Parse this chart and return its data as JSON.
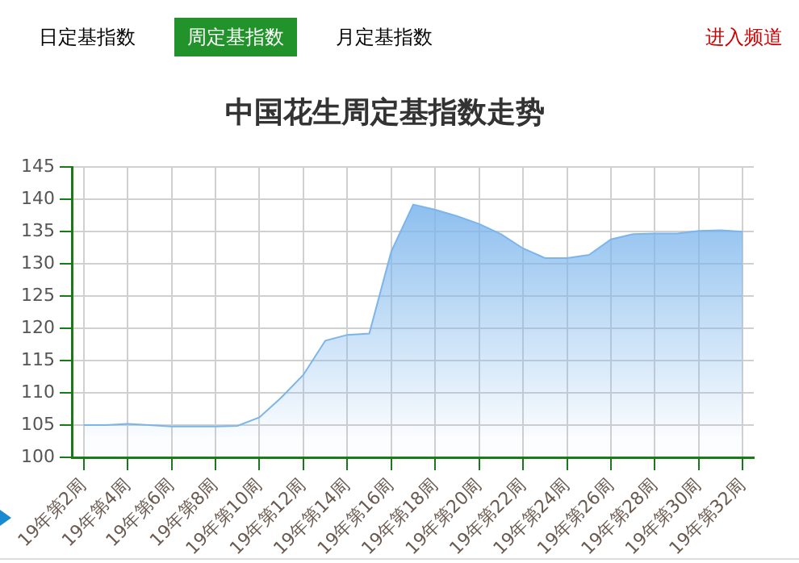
{
  "chart_data": {
    "type": "area",
    "title": "中国花生周定基指数走势",
    "annotations": [
      "日定基指数",
      "周定基指数",
      "月定基指数",
      "进入频道"
    ],
    "categories": [
      "19年第2周",
      null,
      "19年第4周",
      null,
      "19年第6周",
      null,
      "19年第8周",
      null,
      "19年第10周",
      null,
      "19年第12周",
      null,
      "19年第14周",
      null,
      "19年第16周",
      null,
      "19年第18周",
      null,
      "19年第20周",
      null,
      "19年第22周",
      null,
      "19年第24周",
      null,
      "19年第26周",
      null,
      "19年第28周",
      null,
      "19年第30周",
      null,
      "19年第32周"
    ],
    "series": [
      {
        "color": "#7cb5ec",
        "values": [
          105.0,
          105.0,
          105.2,
          105.0,
          104.8,
          104.8,
          104.8,
          104.9,
          106.2,
          109.3,
          112.8,
          118.1,
          119.0,
          119.2,
          131.9,
          139.2,
          138.4,
          137.4,
          136.2,
          134.6,
          132.4,
          130.9,
          130.9,
          131.4,
          133.8,
          134.6,
          134.7,
          134.7,
          135.1,
          135.2,
          135.0
        ]
      }
    ],
    "ylim": [
      100,
      145
    ],
    "yticks": [
      100,
      105,
      110,
      115,
      120,
      125,
      130,
      135,
      140,
      145
    ],
    "grid": true,
    "legend": false
  }
}
